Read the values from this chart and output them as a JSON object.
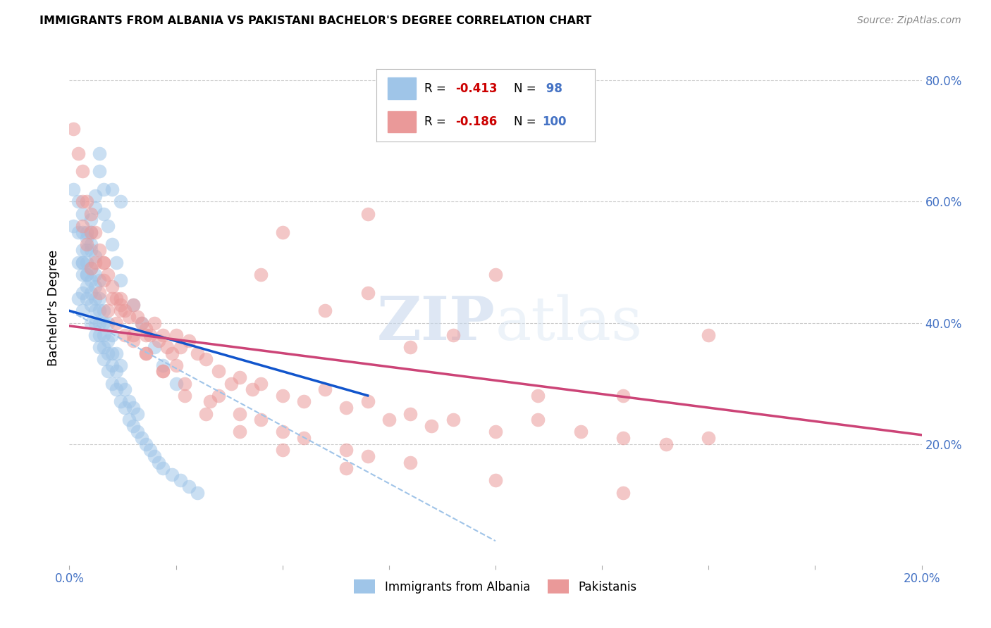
{
  "title": "IMMIGRANTS FROM ALBANIA VS PAKISTANI BACHELOR'S DEGREE CORRELATION CHART",
  "source": "Source: ZipAtlas.com",
  "ylabel": "Bachelor's Degree",
  "xmin": 0.0,
  "xmax": 0.2,
  "ymin": 0.0,
  "ymax": 0.85,
  "yticks_right": [
    0.2,
    0.4,
    0.6,
    0.8
  ],
  "ytick_labels_right": [
    "20.0%",
    "40.0%",
    "60.0%",
    "80.0%"
  ],
  "xticks": [
    0.0,
    0.025,
    0.05,
    0.075,
    0.1,
    0.125,
    0.15,
    0.175,
    0.2
  ],
  "xtick_labels_show": [
    "0.0%",
    "",
    "",
    "",
    "",
    "",
    "",
    "",
    "20.0%"
  ],
  "legend_blue_R": "-0.413",
  "legend_blue_N": "98",
  "legend_pink_R": "-0.186",
  "legend_pink_N": "100",
  "blue_color": "#9fc5e8",
  "pink_color": "#ea9999",
  "blue_line_color": "#1155cc",
  "pink_line_color": "#cc4477",
  "dashed_line_color": "#a0c4e8",
  "watermark_zip": "ZIP",
  "watermark_atlas": "atlas",
  "legend_label_blue": "Immigrants from Albania",
  "legend_label_pink": "Pakistanis",
  "blue_scatter_x": [
    0.001,
    0.001,
    0.002,
    0.002,
    0.002,
    0.003,
    0.003,
    0.003,
    0.003,
    0.003,
    0.003,
    0.004,
    0.004,
    0.004,
    0.004,
    0.004,
    0.004,
    0.005,
    0.005,
    0.005,
    0.005,
    0.005,
    0.005,
    0.005,
    0.006,
    0.006,
    0.006,
    0.006,
    0.006,
    0.006,
    0.006,
    0.007,
    0.007,
    0.007,
    0.007,
    0.007,
    0.007,
    0.008,
    0.008,
    0.008,
    0.008,
    0.008,
    0.009,
    0.009,
    0.009,
    0.009,
    0.01,
    0.01,
    0.01,
    0.01,
    0.011,
    0.011,
    0.011,
    0.012,
    0.012,
    0.012,
    0.013,
    0.013,
    0.014,
    0.014,
    0.015,
    0.015,
    0.016,
    0.016,
    0.017,
    0.018,
    0.019,
    0.02,
    0.021,
    0.022,
    0.024,
    0.026,
    0.028,
    0.03,
    0.003,
    0.004,
    0.005,
    0.005,
    0.006,
    0.007,
    0.007,
    0.008,
    0.009,
    0.01,
    0.011,
    0.012,
    0.015,
    0.017,
    0.02,
    0.022,
    0.025,
    0.002,
    0.003,
    0.004,
    0.006,
    0.008,
    0.01,
    0.012
  ],
  "blue_scatter_y": [
    0.56,
    0.62,
    0.5,
    0.55,
    0.6,
    0.45,
    0.48,
    0.5,
    0.52,
    0.55,
    0.58,
    0.44,
    0.46,
    0.48,
    0.5,
    0.52,
    0.54,
    0.4,
    0.43,
    0.45,
    0.47,
    0.49,
    0.52,
    0.55,
    0.38,
    0.4,
    0.42,
    0.44,
    0.46,
    0.48,
    0.51,
    0.36,
    0.38,
    0.4,
    0.42,
    0.44,
    0.47,
    0.34,
    0.36,
    0.38,
    0.4,
    0.42,
    0.32,
    0.35,
    0.37,
    0.4,
    0.3,
    0.33,
    0.35,
    0.38,
    0.29,
    0.32,
    0.35,
    0.27,
    0.3,
    0.33,
    0.26,
    0.29,
    0.24,
    0.27,
    0.23,
    0.26,
    0.22,
    0.25,
    0.21,
    0.2,
    0.19,
    0.18,
    0.17,
    0.16,
    0.15,
    0.14,
    0.13,
    0.12,
    0.42,
    0.48,
    0.53,
    0.57,
    0.61,
    0.65,
    0.68,
    0.58,
    0.56,
    0.53,
    0.5,
    0.47,
    0.43,
    0.4,
    0.36,
    0.33,
    0.3,
    0.44,
    0.5,
    0.55,
    0.59,
    0.62,
    0.62,
    0.6
  ],
  "pink_scatter_x": [
    0.001,
    0.002,
    0.003,
    0.004,
    0.005,
    0.006,
    0.007,
    0.008,
    0.009,
    0.01,
    0.011,
    0.012,
    0.013,
    0.014,
    0.015,
    0.016,
    0.017,
    0.018,
    0.019,
    0.02,
    0.021,
    0.022,
    0.023,
    0.024,
    0.025,
    0.026,
    0.028,
    0.03,
    0.032,
    0.035,
    0.038,
    0.04,
    0.043,
    0.045,
    0.05,
    0.055,
    0.06,
    0.065,
    0.07,
    0.075,
    0.08,
    0.085,
    0.09,
    0.1,
    0.11,
    0.12,
    0.13,
    0.14,
    0.15,
    0.003,
    0.005,
    0.007,
    0.009,
    0.011,
    0.013,
    0.015,
    0.018,
    0.022,
    0.027,
    0.033,
    0.04,
    0.05,
    0.065,
    0.08,
    0.1,
    0.13,
    0.004,
    0.006,
    0.008,
    0.01,
    0.012,
    0.015,
    0.018,
    0.022,
    0.027,
    0.032,
    0.04,
    0.05,
    0.065,
    0.003,
    0.005,
    0.008,
    0.012,
    0.018,
    0.025,
    0.035,
    0.045,
    0.055,
    0.07,
    0.045,
    0.06,
    0.08,
    0.11,
    0.05,
    0.07,
    0.09,
    0.13,
    0.07,
    0.1,
    0.15
  ],
  "pink_scatter_y": [
    0.72,
    0.68,
    0.65,
    0.6,
    0.58,
    0.55,
    0.52,
    0.5,
    0.48,
    0.46,
    0.44,
    0.43,
    0.42,
    0.41,
    0.43,
    0.41,
    0.4,
    0.39,
    0.38,
    0.4,
    0.37,
    0.38,
    0.36,
    0.35,
    0.38,
    0.36,
    0.37,
    0.35,
    0.34,
    0.32,
    0.3,
    0.31,
    0.29,
    0.3,
    0.28,
    0.27,
    0.29,
    0.26,
    0.27,
    0.24,
    0.25,
    0.23,
    0.24,
    0.22,
    0.24,
    0.22,
    0.21,
    0.2,
    0.21,
    0.56,
    0.49,
    0.45,
    0.42,
    0.4,
    0.38,
    0.37,
    0.35,
    0.32,
    0.3,
    0.27,
    0.25,
    0.22,
    0.19,
    0.17,
    0.14,
    0.12,
    0.53,
    0.5,
    0.47,
    0.44,
    0.42,
    0.38,
    0.35,
    0.32,
    0.28,
    0.25,
    0.22,
    0.19,
    0.16,
    0.6,
    0.55,
    0.5,
    0.44,
    0.38,
    0.33,
    0.28,
    0.24,
    0.21,
    0.18,
    0.48,
    0.42,
    0.36,
    0.28,
    0.55,
    0.45,
    0.38,
    0.28,
    0.58,
    0.48,
    0.38
  ],
  "blue_trend_x0": 0.0,
  "blue_trend_y0": 0.42,
  "blue_trend_x1": 0.07,
  "blue_trend_y1": 0.28,
  "pink_trend_x0": 0.0,
  "pink_trend_y0": 0.395,
  "pink_trend_x1": 0.2,
  "pink_trend_y1": 0.215,
  "dashed_trend_x0": 0.0,
  "dashed_trend_y0": 0.42,
  "dashed_trend_x1": 0.1,
  "dashed_trend_y1": 0.04,
  "grid_color": "#cccccc",
  "title_fontsize": 11.5,
  "tick_label_color": "#4472c4"
}
